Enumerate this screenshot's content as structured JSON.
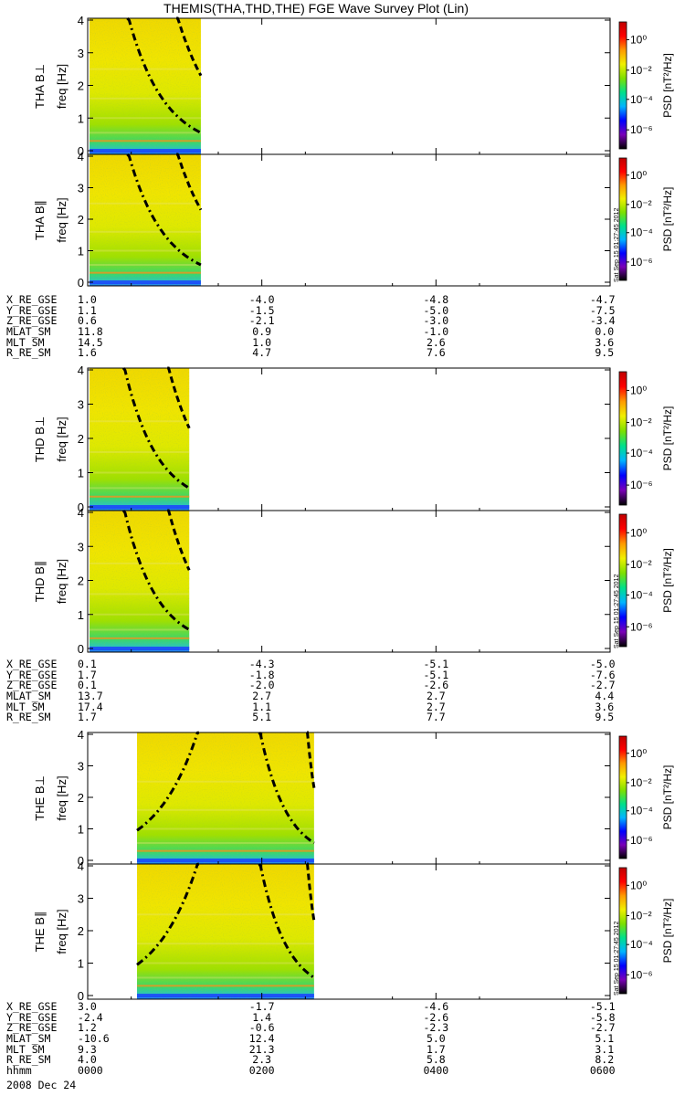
{
  "chart_data": {
    "type": "heatmap",
    "title": "THEMIS(THA,THD,THE) FGE Wave Survey Plot (Lin)",
    "time_ticks": [
      "0000",
      "0200",
      "0400",
      "0600"
    ],
    "time_row_label": "hhmm",
    "date": "2008 Dec 24",
    "y_range": [
      0,
      4
    ],
    "y_ticks": [
      "0",
      "1",
      "2",
      "3",
      "4"
    ],
    "colorbar": {
      "label": "PSD [nT²/Hz]",
      "scale": "log",
      "ticks": [
        "10⁰",
        "10⁻²",
        "10⁻⁴",
        "10⁻⁶"
      ],
      "colors": [
        "#000000",
        "#7a00b8",
        "#0000ff",
        "#00b4ff",
        "#00e08a",
        "#7de000",
        "#f0f000",
        "#ff9a00",
        "#ff0000",
        "#c00000"
      ]
    },
    "panels": [
      {
        "label": "THA B⊥",
        "axis_label": "freq [Hz]",
        "data_end_hhmm": "0118",
        "curves": "right"
      },
      {
        "label": "THA B∥",
        "axis_label": "freq [Hz]",
        "data_end_hhmm": "0118",
        "curves": "right"
      },
      {
        "label": "THD B⊥",
        "axis_label": "freq [Hz]",
        "data_end_hhmm": "0110",
        "curves": "right"
      },
      {
        "label": "THD B∥",
        "axis_label": "freq [Hz]",
        "data_end_hhmm": "0110",
        "curves": "right"
      },
      {
        "label": "THE B⊥",
        "axis_label": "freq [Hz]",
        "data_start_hhmm": "0034",
        "data_end_hhmm": "0236",
        "curves": "both"
      },
      {
        "label": "THE B∥",
        "axis_label": "freq [Hz]",
        "data_start_hhmm": "0034",
        "data_end_hhmm": "0236",
        "curves": "both"
      }
    ],
    "stamp": "Sat Sep 15 01:27:45 2012",
    "ephemeris": [
      {
        "rows": [
          {
            "label": "X_RE_GSE",
            "values": [
              "1.0",
              "-4.0",
              "-4.8",
              "-4.7"
            ]
          },
          {
            "label": "Y_RE_GSE",
            "values": [
              "1.1",
              "-1.5",
              "-5.0",
              "-7.5"
            ]
          },
          {
            "label": "Z_RE_GSE",
            "values": [
              "0.6",
              "-2.1",
              "-3.0",
              "-3.4"
            ]
          },
          {
            "label": "MLAT_SM",
            "values": [
              "11.8",
              "0.9",
              "-1.0",
              "0.0"
            ]
          },
          {
            "label": "MLT_SM",
            "values": [
              "14.5",
              "1.0",
              "2.6",
              "3.6"
            ]
          },
          {
            "label": "R_RE_SM",
            "values": [
              "1.6",
              "4.7",
              "7.6",
              "9.5"
            ]
          }
        ]
      },
      {
        "rows": [
          {
            "label": "X_RE_GSE",
            "values": [
              "0.1",
              "-4.3",
              "-5.1",
              "-5.0"
            ]
          },
          {
            "label": "Y_RE_GSE",
            "values": [
              "1.7",
              "-1.8",
              "-5.1",
              "-7.6"
            ]
          },
          {
            "label": "Z_RE_GSE",
            "values": [
              "0.1",
              "-2.0",
              "-2.6",
              "-2.7"
            ]
          },
          {
            "label": "MLAT_SM",
            "values": [
              "13.7",
              "2.7",
              "2.7",
              "4.4"
            ]
          },
          {
            "label": "MLT_SM",
            "values": [
              "17.4",
              "1.1",
              "2.7",
              "3.6"
            ]
          },
          {
            "label": "R_RE_SM",
            "values": [
              "1.7",
              "5.1",
              "7.7",
              "9.5"
            ]
          }
        ]
      },
      {
        "rows": [
          {
            "label": "X_RE_GSE",
            "values": [
              "3.0",
              "-1.7",
              "-4.6",
              "-5.1"
            ]
          },
          {
            "label": "Y_RE_GSE",
            "values": [
              "-2.4",
              "1.4",
              "-2.6",
              "-5.8"
            ]
          },
          {
            "label": "Z_RE_GSE",
            "values": [
              "1.2",
              "-0.6",
              "-2.3",
              "-2.7"
            ]
          },
          {
            "label": "MLAT_SM",
            "values": [
              "-10.6",
              "12.4",
              "5.0",
              "5.1"
            ]
          },
          {
            "label": "MLT_SM",
            "values": [
              "9.3",
              "21.3",
              "1.7",
              "3.1"
            ]
          },
          {
            "label": "R_RE_SM",
            "values": [
              "4.0",
              "2.3",
              "5.8",
              "8.2"
            ]
          }
        ]
      }
    ]
  }
}
